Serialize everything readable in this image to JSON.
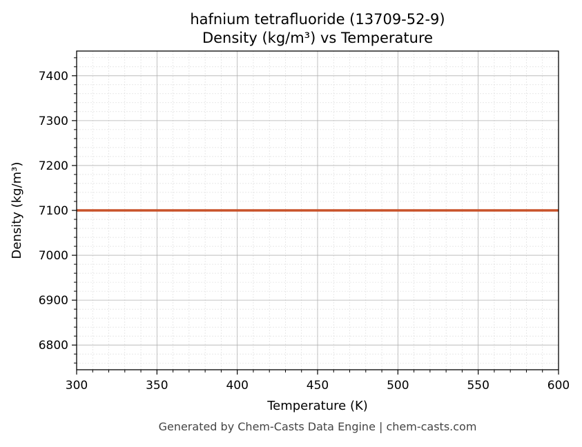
{
  "chart_data": {
    "type": "line",
    "title_line1": "hafnium tetrafluoride (13709-52-9)",
    "title_line2": "Density (kg/m³) vs Temperature",
    "xlabel": "Temperature (K)",
    "ylabel": "Density (kg/m³)",
    "xlim": [
      300,
      600
    ],
    "ylim": [
      6745,
      7455
    ],
    "x_ticks": [
      300,
      350,
      400,
      450,
      500,
      550,
      600
    ],
    "y_ticks": [
      6800,
      6900,
      7000,
      7100,
      7200,
      7300,
      7400
    ],
    "x_minor_step": 10,
    "y_minor_step": 20,
    "grid": true,
    "series": [
      {
        "color": "#c8522a",
        "x": [
          300,
          600
        ],
        "y": [
          7100,
          7100
        ]
      }
    ]
  },
  "footer": {
    "text": "Generated by Chem-Casts Data Engine | chem-casts.com"
  }
}
